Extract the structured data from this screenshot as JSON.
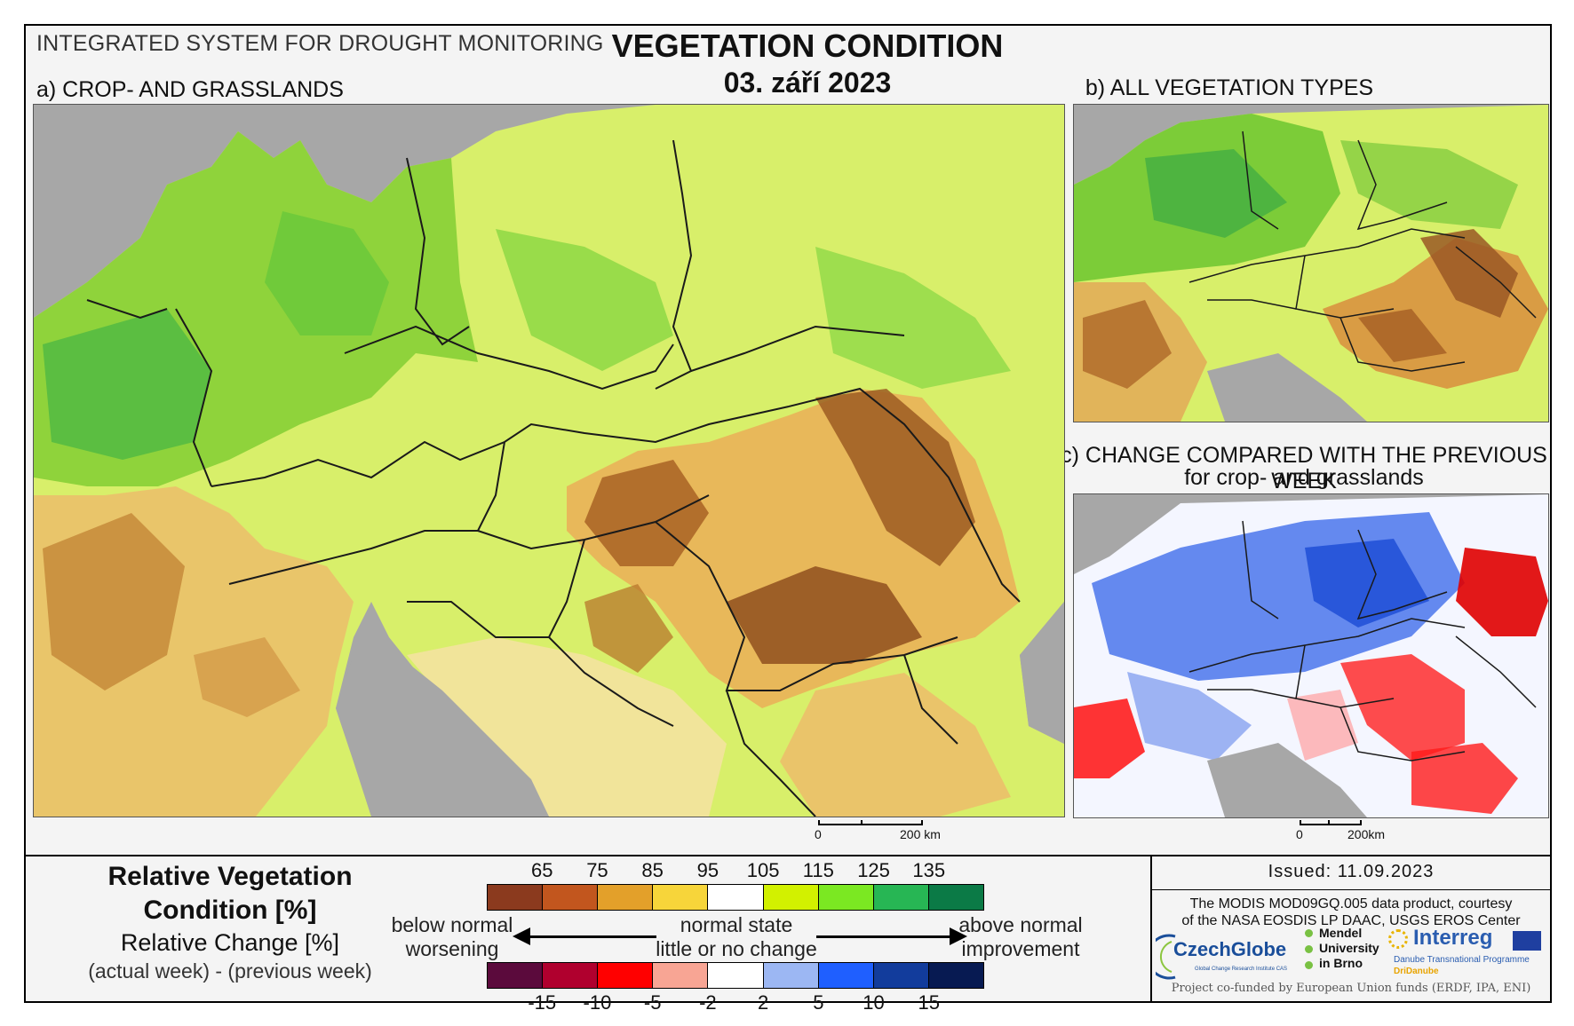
{
  "header": {
    "system_name": "INTEGRATED SYSTEM FOR DROUGHT MONITORING",
    "title": "VEGETATION CONDITION",
    "date": "03. září 2023"
  },
  "panels": {
    "a": {
      "label": "a) CROP- AND GRASSLANDS"
    },
    "b": {
      "label": "b) ALL VEGETATION TYPES"
    },
    "c": {
      "label": "c) CHANGE COMPARED WITH THE PREVIOUS WEEK",
      "sublabel": "for crop- and grasslands"
    }
  },
  "scalebars": {
    "a": {
      "zero": "0",
      "distance": "200 km"
    },
    "c": {
      "zero": "0",
      "distance": "200km"
    }
  },
  "legend": {
    "condition_title_line1": "Relative Vegetation",
    "condition_title_line2": "Condition [%]",
    "change_title": "Relative Change [%]",
    "change_subtitle": "(actual week) - (previous week)",
    "condition_ticks": [
      "65",
      "75",
      "85",
      "95",
      "105",
      "115",
      "125",
      "135"
    ],
    "condition_colors": [
      "#8b3a1e",
      "#c2561e",
      "#e3a02a",
      "#f7d53a",
      "#ffffff",
      "#d2f100",
      "#7be822",
      "#27b654",
      "#0b7a46"
    ],
    "change_ticks": [
      "-15",
      "-10",
      "-5",
      "-2",
      "2",
      "5",
      "10",
      "15"
    ],
    "change_colors": [
      "#5b0a3c",
      "#b0002e",
      "#ff0000",
      "#f8a594",
      "#ffffff",
      "#9cb7f3",
      "#1f5fff",
      "#123c9c",
      "#071a52"
    ],
    "left_line1": "below normal",
    "left_line2": "worsening",
    "center_line1": "normal state",
    "center_line2": "little or no change",
    "right_line1": "above normal",
    "right_line2": "improvement"
  },
  "info": {
    "issued": "Issued: 11.09.2023",
    "credit_line1": "The MODIS MOD09GQ.005 data product, courtesy",
    "credit_line2": "of the NASA EOSDIS LP DAAC, USGS EROS Center",
    "funded": "Project co-funded by European Union funds (ERDF, IPA, ENI)"
  },
  "logos": {
    "czechglobe": "CzechGlobe",
    "czechglobe_sub": "Global Change Research Institute CAS",
    "mendel_line1": "Mendel",
    "mendel_line2": "University",
    "mendel_line3": "in Brno",
    "interreg": "Interreg",
    "interreg_sub1": "Danube Transnational Programme",
    "interreg_sub2": "DriDanube"
  }
}
